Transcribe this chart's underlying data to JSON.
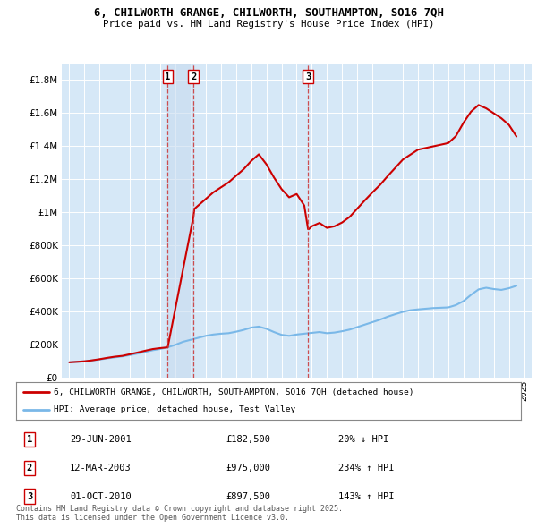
{
  "title_line1": "6, CHILWORTH GRANGE, CHILWORTH, SOUTHAMPTON, SO16 7QH",
  "title_line2": "Price paid vs. HM Land Registry's House Price Index (HPI)",
  "ytick_values": [
    0,
    200000,
    400000,
    600000,
    800000,
    1000000,
    1200000,
    1400000,
    1600000,
    1800000
  ],
  "ylim": [
    0,
    1900000
  ],
  "xlim_start": 1994.5,
  "xlim_end": 2025.5,
  "plot_bg": "#d6e8f7",
  "hpi_color": "#7ab8e8",
  "price_color": "#cc0000",
  "transaction_dates": [
    2001.49,
    2003.19,
    2010.75
  ],
  "transaction_labels": [
    "1",
    "2",
    "3"
  ],
  "legend_line1": "6, CHILWORTH GRANGE, CHILWORTH, SOUTHAMPTON, SO16 7QH (detached house)",
  "legend_line2": "HPI: Average price, detached house, Test Valley",
  "table_rows": [
    [
      "1",
      "29-JUN-2001",
      "£182,500",
      "20% ↓ HPI"
    ],
    [
      "2",
      "12-MAR-2003",
      "£975,000",
      "234% ↑ HPI"
    ],
    [
      "3",
      "01-OCT-2010",
      "£897,500",
      "143% ↑ HPI"
    ]
  ],
  "footnote": "Contains HM Land Registry data © Crown copyright and database right 2025.\nThis data is licensed under the Open Government Licence v3.0.",
  "hpi_x": [
    1995.0,
    1995.5,
    1996.0,
    1996.5,
    1997.0,
    1997.5,
    1998.0,
    1998.5,
    1999.0,
    1999.5,
    2000.0,
    2000.5,
    2001.0,
    2001.5,
    2002.0,
    2002.5,
    2003.0,
    2003.5,
    2004.0,
    2004.5,
    2005.0,
    2005.5,
    2006.0,
    2006.5,
    2007.0,
    2007.5,
    2008.0,
    2008.5,
    2009.0,
    2009.5,
    2010.0,
    2010.5,
    2011.0,
    2011.5,
    2012.0,
    2012.5,
    2013.0,
    2013.5,
    2014.0,
    2014.5,
    2015.0,
    2015.5,
    2016.0,
    2016.5,
    2017.0,
    2017.5,
    2018.0,
    2018.5,
    2019.0,
    2019.5,
    2020.0,
    2020.5,
    2021.0,
    2021.5,
    2022.0,
    2022.5,
    2023.0,
    2023.5,
    2024.0,
    2024.5
  ],
  "hpi_y": [
    92000,
    95000,
    98000,
    103000,
    109000,
    116000,
    122000,
    128000,
    136000,
    145000,
    155000,
    165000,
    173000,
    183000,
    198000,
    216000,
    228000,
    240000,
    252000,
    260000,
    265000,
    268000,
    277000,
    288000,
    302000,
    308000,
    295000,
    275000,
    258000,
    252000,
    260000,
    265000,
    270000,
    275000,
    268000,
    272000,
    280000,
    290000,
    305000,
    320000,
    335000,
    350000,
    368000,
    383000,
    397000,
    407000,
    412000,
    416000,
    420000,
    422000,
    424000,
    438000,
    462000,
    500000,
    533000,
    543000,
    535000,
    530000,
    540000,
    555000
  ],
  "price_x": [
    1995.0,
    1995.5,
    1996.0,
    1996.5,
    1997.0,
    1997.5,
    1998.0,
    1998.5,
    1999.0,
    1999.5,
    2000.0,
    2000.5,
    2001.0,
    2001.49,
    2003.19,
    2003.25,
    2004.0,
    2004.5,
    2005.0,
    2005.5,
    2006.0,
    2006.5,
    2007.0,
    2007.5,
    2008.0,
    2008.5,
    2009.0,
    2009.5,
    2010.0,
    2010.5,
    2010.75,
    2010.8,
    2011.0,
    2011.5,
    2012.0,
    2012.5,
    2013.0,
    2013.5,
    2014.0,
    2014.5,
    2015.0,
    2015.5,
    2016.0,
    2016.5,
    2017.0,
    2017.5,
    2018.0,
    2018.5,
    2019.0,
    2019.5,
    2020.0,
    2020.5,
    2021.0,
    2021.5,
    2022.0,
    2022.5,
    2023.0,
    2023.5,
    2024.0,
    2024.5
  ],
  "price_y": [
    92000,
    95000,
    98000,
    104000,
    111000,
    119000,
    126000,
    131000,
    141000,
    151000,
    162000,
    172000,
    178000,
    182500,
    975000,
    1020000,
    1080000,
    1120000,
    1150000,
    1180000,
    1220000,
    1260000,
    1310000,
    1350000,
    1290000,
    1210000,
    1140000,
    1090000,
    1110000,
    1040000,
    897500,
    897500,
    915000,
    935000,
    905000,
    915000,
    938000,
    972000,
    1022000,
    1072000,
    1120000,
    1165000,
    1218000,
    1268000,
    1318000,
    1348000,
    1378000,
    1388000,
    1398000,
    1408000,
    1418000,
    1460000,
    1540000,
    1608000,
    1648000,
    1628000,
    1598000,
    1568000,
    1528000,
    1458000
  ]
}
